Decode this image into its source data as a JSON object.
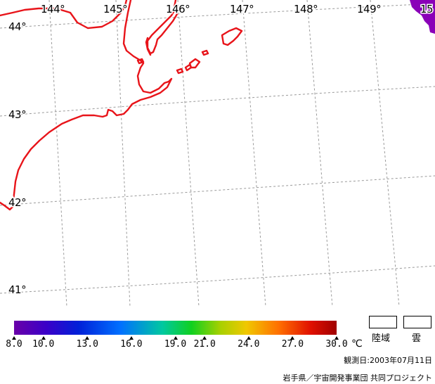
{
  "map": {
    "lon_labels": [
      "144°",
      "145°",
      "146°",
      "147°",
      "148°",
      "149°",
      "15"
    ],
    "lat_labels": [
      "44°",
      "43°",
      "42°",
      "41°"
    ],
    "coast_color": "#e8141a",
    "grid_color": "#9a9a9a",
    "cloud_color": "#8a00b8"
  },
  "legend": {
    "tick_labels": [
      "8.0",
      "10.0",
      "13.0",
      "16.0",
      "19.0",
      "21.0",
      "24.0",
      "27.0",
      "30.0"
    ],
    "tick_values": [
      8.0,
      10.0,
      13.0,
      16.0,
      19.0,
      21.0,
      24.0,
      27.0,
      30.0
    ],
    "range": [
      8.0,
      30.0
    ],
    "unit": "℃",
    "land_label": "陸域",
    "cloud_label": "雲",
    "observation_date": "観測日:2003年07月11日",
    "credit": "岩手県／宇宙開発事業団 共同プロジェクト"
  }
}
